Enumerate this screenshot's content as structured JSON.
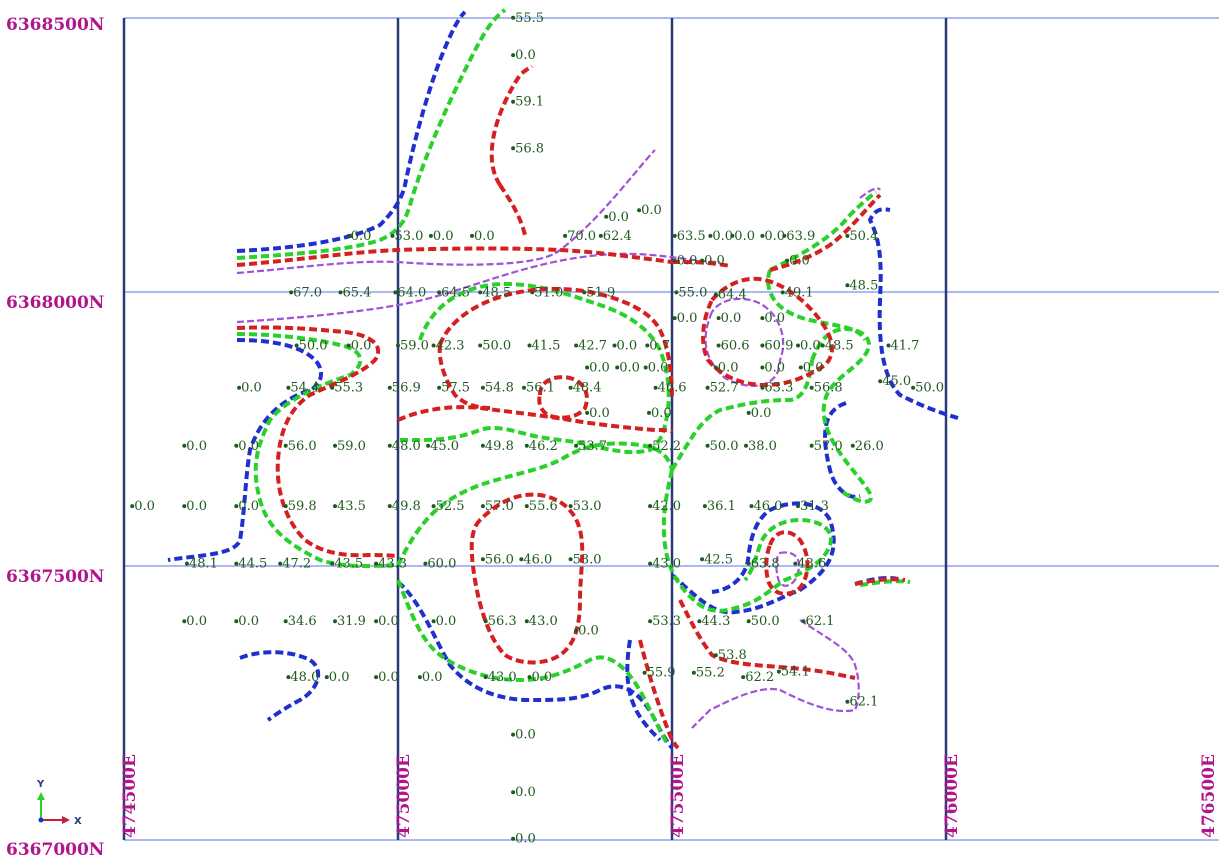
{
  "northing_labels": [
    "6368500N",
    "6368000N",
    "6367500N",
    "6367000N"
  ],
  "easting_labels": [
    "474500E",
    "475000E",
    "475500E",
    "476000E",
    "476500E"
  ],
  "axis_indicator": {
    "y_label": "Y",
    "x_label": "X"
  },
  "colors": {
    "blue_contour": "#1f2fd0",
    "green_contour": "#2ad12a",
    "red_contour": "#d42020",
    "purple_contour": "#a052d8",
    "grid_minor": "#7b8ff0",
    "grid_major": "#2a3a78",
    "coord_label": "#b0168c",
    "sample_value": "#1f5a1f"
  },
  "samples": [
    {
      "t": "55.5",
      "x": 475210,
      "y": 6368493
    },
    {
      "t": "0.0",
      "x": 475210,
      "y": 6368425
    },
    {
      "t": "59.1",
      "x": 475210,
      "y": 6368340
    },
    {
      "t": "56.8",
      "x": 475210,
      "y": 6368255
    },
    {
      "t": "0.0",
      "x": 475380,
      "y": 6368130
    },
    {
      "t": "0.0",
      "x": 475440,
      "y": 6368142
    },
    {
      "t": "0.0",
      "x": 474910,
      "y": 6368095
    },
    {
      "t": "53.0",
      "x": 474990,
      "y": 6368095
    },
    {
      "t": "0.0",
      "x": 475060,
      "y": 6368095
    },
    {
      "t": "0.0",
      "x": 475135,
      "y": 6368095
    },
    {
      "t": "70.0",
      "x": 475305,
      "y": 6368095
    },
    {
      "t": "62.4",
      "x": 475370,
      "y": 6368095
    },
    {
      "t": "63.5",
      "x": 475505,
      "y": 6368095
    },
    {
      "t": "0.0",
      "x": 475570,
      "y": 6368095
    },
    {
      "t": "0.0",
      "x": 475610,
      "y": 6368095
    },
    {
      "t": "0.0",
      "x": 475665,
      "y": 6368095
    },
    {
      "t": "63.9",
      "x": 475705,
      "y": 6368095
    },
    {
      "t": "50.4",
      "x": 475820,
      "y": 6368095
    },
    {
      "t": "0.0",
      "x": 475505,
      "y": 6368050
    },
    {
      "t": "0.0",
      "x": 475555,
      "y": 6368050
    },
    {
      "t": "0.0",
      "x": 475710,
      "y": 6368050
    },
    {
      "t": "67.0",
      "x": 474805,
      "y": 6367992
    },
    {
      "t": "65.4",
      "x": 474895,
      "y": 6367992
    },
    {
      "t": "64.0",
      "x": 474995,
      "y": 6367992
    },
    {
      "t": "64.5",
      "x": 475075,
      "y": 6367992
    },
    {
      "t": "48.5",
      "x": 475150,
      "y": 6367992
    },
    {
      "t": "51.0",
      "x": 475245,
      "y": 6367992
    },
    {
      "t": "51.9",
      "x": 475340,
      "y": 6367992
    },
    {
      "t": "55.0",
      "x": 475508,
      "y": 6367992
    },
    {
      "t": "64.4",
      "x": 475580,
      "y": 6367988
    },
    {
      "t": "49.1",
      "x": 475702,
      "y": 6367992
    },
    {
      "t": "48.5",
      "x": 475820,
      "y": 6368005
    },
    {
      "t": "0.0",
      "x": 475505,
      "y": 6367945
    },
    {
      "t": "0.0",
      "x": 475585,
      "y": 6367945
    },
    {
      "t": "0.0",
      "x": 475665,
      "y": 6367945
    },
    {
      "t": "50.0",
      "x": 474815,
      "y": 6367895
    },
    {
      "t": "0.0",
      "x": 474910,
      "y": 6367895
    },
    {
      "t": "59.0",
      "x": 475000,
      "y": 6367895
    },
    {
      "t": "42.3",
      "x": 475065,
      "y": 6367895
    },
    {
      "t": "50.0",
      "x": 475150,
      "y": 6367895
    },
    {
      "t": "41.5",
      "x": 475240,
      "y": 6367895
    },
    {
      "t": "42.7",
      "x": 475325,
      "y": 6367895
    },
    {
      "t": "0.0",
      "x": 475395,
      "y": 6367895
    },
    {
      "t": "0.7",
      "x": 475455,
      "y": 6367895
    },
    {
      "t": "60.6",
      "x": 475585,
      "y": 6367895
    },
    {
      "t": "60.9",
      "x": 475665,
      "y": 6367895
    },
    {
      "t": "0.0",
      "x": 475730,
      "y": 6367895
    },
    {
      "t": "48.5",
      "x": 475775,
      "y": 6367895
    },
    {
      "t": "41.7",
      "x": 475895,
      "y": 6367895
    },
    {
      "t": "0.0",
      "x": 475345,
      "y": 6367855
    },
    {
      "t": "0.0",
      "x": 475400,
      "y": 6367855
    },
    {
      "t": "0.0",
      "x": 475452,
      "y": 6367855
    },
    {
      "t": "0.0",
      "x": 475580,
      "y": 6367855
    },
    {
      "t": "0.0",
      "x": 475665,
      "y": 6367855
    },
    {
      "t": "0.0",
      "x": 475735,
      "y": 6367855
    },
    {
      "t": "0.0",
      "x": 474710,
      "y": 6367818
    },
    {
      "t": "54.4",
      "x": 474800,
      "y": 6367818
    },
    {
      "t": "55.3",
      "x": 474880,
      "y": 6367818
    },
    {
      "t": "56.9",
      "x": 474985,
      "y": 6367818
    },
    {
      "t": "57.5",
      "x": 475075,
      "y": 6367818
    },
    {
      "t": "54.8",
      "x": 475155,
      "y": 6367818
    },
    {
      "t": "56.1",
      "x": 475230,
      "y": 6367818
    },
    {
      "t": "48.4",
      "x": 475315,
      "y": 6367818
    },
    {
      "t": "46.6",
      "x": 475470,
      "y": 6367818
    },
    {
      "t": "52.7",
      "x": 475565,
      "y": 6367818
    },
    {
      "t": "63.3",
      "x": 475665,
      "y": 6367818
    },
    {
      "t": "56.8",
      "x": 475755,
      "y": 6367818
    },
    {
      "t": "45.0",
      "x": 475880,
      "y": 6367830
    },
    {
      "t": "50.0",
      "x": 475940,
      "y": 6367818
    },
    {
      "t": "0.0",
      "x": 475345,
      "y": 6367772
    },
    {
      "t": "0.0",
      "x": 475458,
      "y": 6367772
    },
    {
      "t": "0.0",
      "x": 475640,
      "y": 6367772
    },
    {
      "t": "0.0",
      "x": 474610,
      "y": 6367712
    },
    {
      "t": "0.0",
      "x": 474705,
      "y": 6367712
    },
    {
      "t": "56.0",
      "x": 474795,
      "y": 6367712
    },
    {
      "t": "59.0",
      "x": 474885,
      "y": 6367712
    },
    {
      "t": "48.0",
      "x": 474985,
      "y": 6367712
    },
    {
      "t": "45.0",
      "x": 475055,
      "y": 6367712
    },
    {
      "t": "49.8",
      "x": 475155,
      "y": 6367712
    },
    {
      "t": "46.2",
      "x": 475235,
      "y": 6367712
    },
    {
      "t": "53.7",
      "x": 475325,
      "y": 6367712
    },
    {
      "t": "52.2",
      "x": 475460,
      "y": 6367712
    },
    {
      "t": "50.0",
      "x": 475565,
      "y": 6367712
    },
    {
      "t": "38.0",
      "x": 475635,
      "y": 6367712
    },
    {
      "t": "57.0",
      "x": 475755,
      "y": 6367712
    },
    {
      "t": "26.0",
      "x": 475830,
      "y": 6367712
    },
    {
      "t": "0.0",
      "x": 474515,
      "y": 6367602
    },
    {
      "t": "0.0",
      "x": 474610,
      "y": 6367602
    },
    {
      "t": "0.0",
      "x": 474705,
      "y": 6367602
    },
    {
      "t": "59.8",
      "x": 474795,
      "y": 6367602
    },
    {
      "t": "43.5",
      "x": 474885,
      "y": 6367602
    },
    {
      "t": "49.8",
      "x": 474985,
      "y": 6367602
    },
    {
      "t": "52.5",
      "x": 475065,
      "y": 6367602
    },
    {
      "t": "57.0",
      "x": 475155,
      "y": 6367602
    },
    {
      "t": "55.6",
      "x": 475235,
      "y": 6367602
    },
    {
      "t": "53.0",
      "x": 475315,
      "y": 6367602
    },
    {
      "t": "42.0",
      "x": 475460,
      "y": 6367602
    },
    {
      "t": "36.1",
      "x": 475560,
      "y": 6367602
    },
    {
      "t": "46.0",
      "x": 475645,
      "y": 6367602
    },
    {
      "t": "31.3",
      "x": 475730,
      "y": 6367602
    },
    {
      "t": "48.1",
      "x": 474615,
      "y": 6367497
    },
    {
      "t": "44.5",
      "x": 474705,
      "y": 6367497
    },
    {
      "t": "47.2",
      "x": 474785,
      "y": 6367497
    },
    {
      "t": "43.5",
      "x": 474880,
      "y": 6367497
    },
    {
      "t": "43.3",
      "x": 474960,
      "y": 6367497
    },
    {
      "t": "60.0",
      "x": 475050,
      "y": 6367497
    },
    {
      "t": "56.0",
      "x": 475155,
      "y": 6367505
    },
    {
      "t": "46.0",
      "x": 475225,
      "y": 6367505
    },
    {
      "t": "53.0",
      "x": 475315,
      "y": 6367505
    },
    {
      "t": "43.0",
      "x": 475460,
      "y": 6367497
    },
    {
      "t": "42.5",
      "x": 475555,
      "y": 6367505
    },
    {
      "t": "63.8",
      "x": 475640,
      "y": 6367497
    },
    {
      "t": "43.6",
      "x": 475725,
      "y": 6367497
    },
    {
      "t": "0.0",
      "x": 474610,
      "y": 6367392
    },
    {
      "t": "0.0",
      "x": 474705,
      "y": 6367392
    },
    {
      "t": "34.6",
      "x": 474795,
      "y": 6367392
    },
    {
      "t": "31.9",
      "x": 474885,
      "y": 6367392
    },
    {
      "t": "0.0",
      "x": 474960,
      "y": 6367392
    },
    {
      "t": "0.0",
      "x": 475065,
      "y": 6367392
    },
    {
      "t": "56.3",
      "x": 475160,
      "y": 6367392
    },
    {
      "t": "43.0",
      "x": 475235,
      "y": 6367392
    },
    {
      "t": "0.0",
      "x": 475325,
      "y": 6367375
    },
    {
      "t": "53.3",
      "x": 475460,
      "y": 6367392
    },
    {
      "t": "44.3",
      "x": 475550,
      "y": 6367392
    },
    {
      "t": "50.0",
      "x": 475640,
      "y": 6367392
    },
    {
      "t": "62.1",
      "x": 475740,
      "y": 6367392
    },
    {
      "t": "53.8",
      "x": 475580,
      "y": 6367330
    },
    {
      "t": "48.0",
      "x": 474800,
      "y": 6367290
    },
    {
      "t": "0.0",
      "x": 474870,
      "y": 6367290
    },
    {
      "t": "0.0",
      "x": 474960,
      "y": 6367290
    },
    {
      "t": "0.0",
      "x": 475040,
      "y": 6367290
    },
    {
      "t": "43.0",
      "x": 475160,
      "y": 6367290
    },
    {
      "t": "0.0",
      "x": 475240,
      "y": 6367290
    },
    {
      "t": "55.9",
      "x": 475450,
      "y": 6367298
    },
    {
      "t": "55.2",
      "x": 475540,
      "y": 6367298
    },
    {
      "t": "62.2",
      "x": 475630,
      "y": 6367290
    },
    {
      "t": "54.1",
      "x": 475695,
      "y": 6367300
    },
    {
      "t": "62.1",
      "x": 475820,
      "y": 6367245
    },
    {
      "t": "0.0",
      "x": 475210,
      "y": 6367185
    },
    {
      "t": "0.0",
      "x": 475210,
      "y": 6367080
    },
    {
      "t": "0.0",
      "x": 475210,
      "y": 6366995
    }
  ]
}
